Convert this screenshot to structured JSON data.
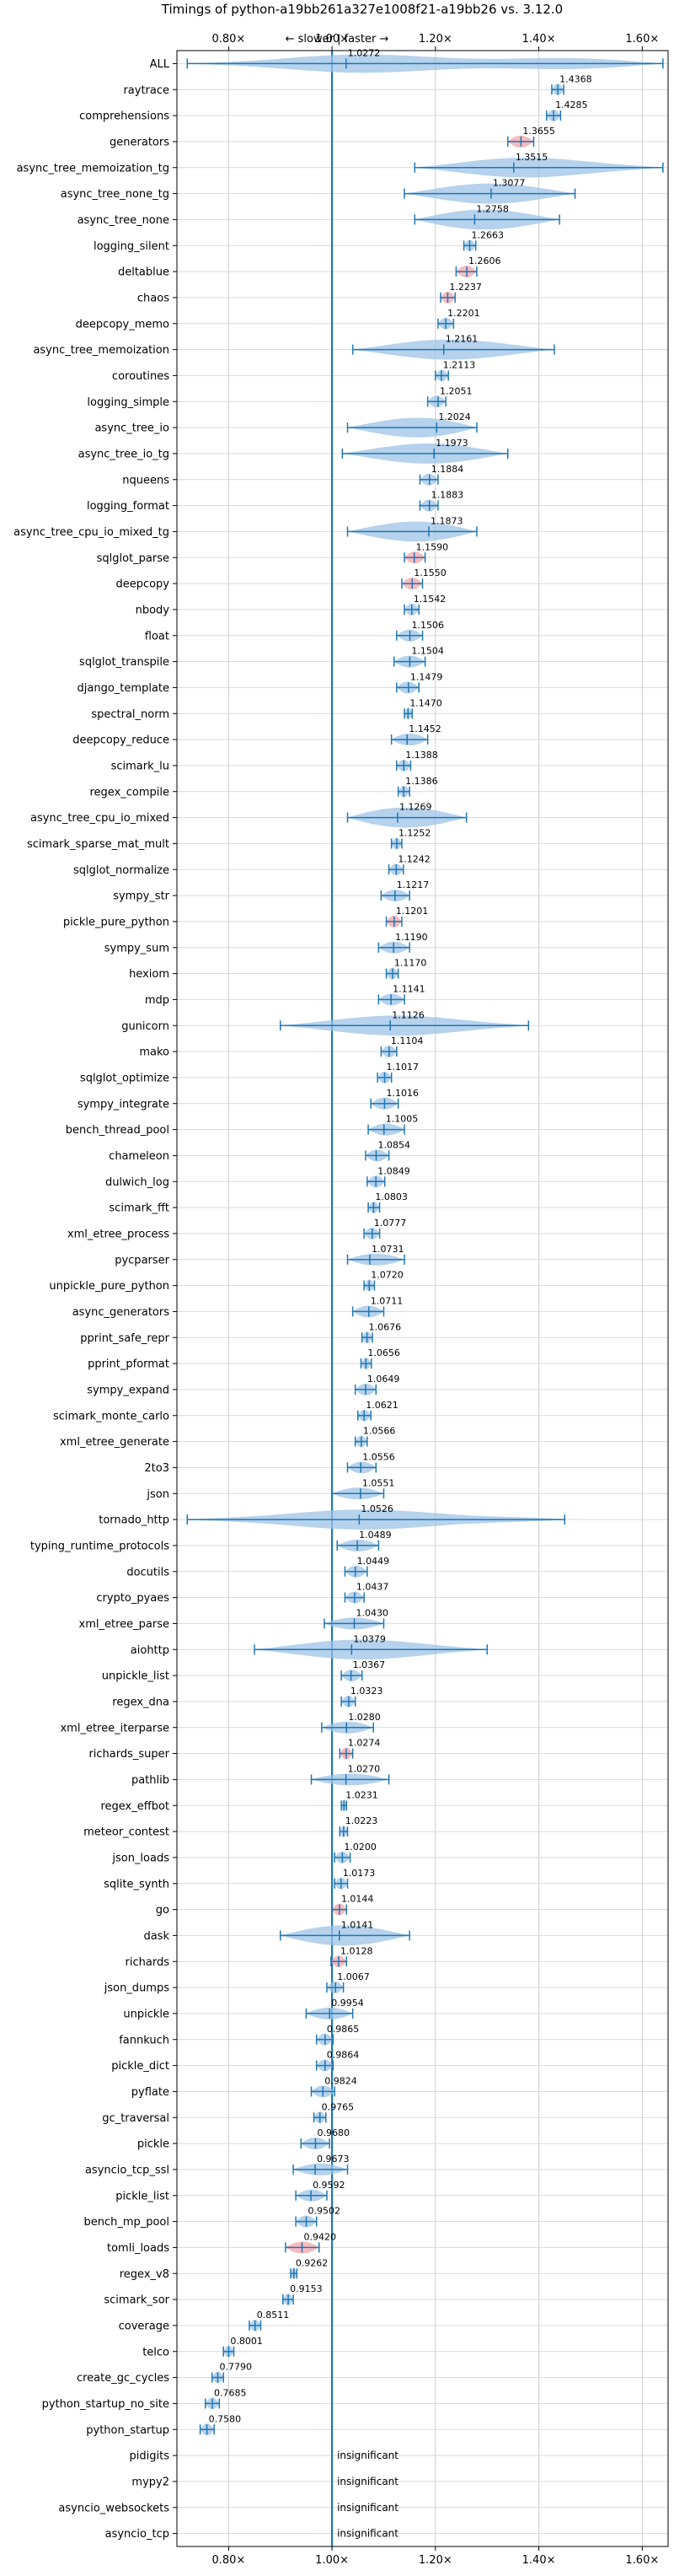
{
  "chart_data": {
    "type": "violin",
    "title": "Timings of python-a19bb261a327e1008f21-a19bb26 vs. 3.12.0",
    "direction_label": "← slower | faster →",
    "x_ticks": [
      "0.80×",
      "1.00×",
      "1.20×",
      "1.40×",
      "1.60×"
    ],
    "x_tick_values": [
      0.8,
      1.0,
      1.2,
      1.4,
      1.6
    ],
    "xlim": [
      0.7,
      1.65
    ],
    "reference_line": 1.0,
    "grid": true,
    "colors": {
      "violin": "#9ec3e6",
      "line": "#1f77b4",
      "highlight": "#f4a3a8"
    },
    "insignificant_label": "insignificant",
    "benchmarks": [
      {
        "name": "ALL",
        "label": "1.0272",
        "value": 1.0272,
        "lo": 0.72,
        "hi": 1.64,
        "highlight": false
      },
      {
        "name": "raytrace",
        "label": "1.4368",
        "value": 1.4368,
        "lo": 1.425,
        "hi": 1.448,
        "highlight": false
      },
      {
        "name": "comprehensions",
        "label": "1.4285",
        "value": 1.4285,
        "lo": 1.415,
        "hi": 1.442,
        "highlight": false
      },
      {
        "name": "generators",
        "label": "1.3655",
        "value": 1.3655,
        "lo": 1.34,
        "hi": 1.39,
        "highlight": true
      },
      {
        "name": "async_tree_memoization_tg",
        "label": "1.3515",
        "value": 1.3515,
        "lo": 1.16,
        "hi": 1.64,
        "highlight": false
      },
      {
        "name": "async_tree_none_tg",
        "label": "1.3077",
        "value": 1.3077,
        "lo": 1.14,
        "hi": 1.47,
        "highlight": false
      },
      {
        "name": "async_tree_none",
        "label": "1.2758",
        "value": 1.2758,
        "lo": 1.16,
        "hi": 1.44,
        "highlight": false
      },
      {
        "name": "logging_silent",
        "label": "1.2663",
        "value": 1.2663,
        "lo": 1.255,
        "hi": 1.278,
        "highlight": false
      },
      {
        "name": "deltablue",
        "label": "1.2606",
        "value": 1.2606,
        "lo": 1.24,
        "hi": 1.28,
        "highlight": true
      },
      {
        "name": "chaos",
        "label": "1.2237",
        "value": 1.2237,
        "lo": 1.21,
        "hi": 1.238,
        "highlight": true
      },
      {
        "name": "deepcopy_memo",
        "label": "1.2201",
        "value": 1.2201,
        "lo": 1.205,
        "hi": 1.235,
        "highlight": false
      },
      {
        "name": "async_tree_memoization",
        "label": "1.2161",
        "value": 1.2161,
        "lo": 1.04,
        "hi": 1.43,
        "highlight": false
      },
      {
        "name": "coroutines",
        "label": "1.2113",
        "value": 1.2113,
        "lo": 1.2,
        "hi": 1.225,
        "highlight": false
      },
      {
        "name": "logging_simple",
        "label": "1.2051",
        "value": 1.2051,
        "lo": 1.185,
        "hi": 1.22,
        "highlight": false
      },
      {
        "name": "async_tree_io",
        "label": "1.2024",
        "value": 1.2024,
        "lo": 1.03,
        "hi": 1.28,
        "highlight": false
      },
      {
        "name": "async_tree_io_tg",
        "label": "1.1973",
        "value": 1.1973,
        "lo": 1.02,
        "hi": 1.34,
        "highlight": false
      },
      {
        "name": "nqueens",
        "label": "1.1884",
        "value": 1.1884,
        "lo": 1.17,
        "hi": 1.205,
        "highlight": false
      },
      {
        "name": "logging_format",
        "label": "1.1883",
        "value": 1.1883,
        "lo": 1.17,
        "hi": 1.205,
        "highlight": false
      },
      {
        "name": "async_tree_cpu_io_mixed_tg",
        "label": "1.1873",
        "value": 1.1873,
        "lo": 1.03,
        "hi": 1.28,
        "highlight": false
      },
      {
        "name": "sqlglot_parse",
        "label": "1.1590",
        "value": 1.159,
        "lo": 1.14,
        "hi": 1.18,
        "highlight": true
      },
      {
        "name": "deepcopy",
        "label": "1.1550",
        "value": 1.155,
        "lo": 1.135,
        "hi": 1.175,
        "highlight": true
      },
      {
        "name": "nbody",
        "label": "1.1542",
        "value": 1.1542,
        "lo": 1.14,
        "hi": 1.168,
        "highlight": false
      },
      {
        "name": "float",
        "label": "1.1506",
        "value": 1.1506,
        "lo": 1.125,
        "hi": 1.175,
        "highlight": false
      },
      {
        "name": "sqlglot_transpile",
        "label": "1.1504",
        "value": 1.1504,
        "lo": 1.12,
        "hi": 1.18,
        "highlight": false
      },
      {
        "name": "django_template",
        "label": "1.1479",
        "value": 1.1479,
        "lo": 1.125,
        "hi": 1.168,
        "highlight": false
      },
      {
        "name": "spectral_norm",
        "label": "1.1470",
        "value": 1.147,
        "lo": 1.14,
        "hi": 1.155,
        "highlight": false
      },
      {
        "name": "deepcopy_reduce",
        "label": "1.1452",
        "value": 1.1452,
        "lo": 1.115,
        "hi": 1.185,
        "highlight": false
      },
      {
        "name": "scimark_lu",
        "label": "1.1388",
        "value": 1.1388,
        "lo": 1.125,
        "hi": 1.152,
        "highlight": false
      },
      {
        "name": "regex_compile",
        "label": "1.1386",
        "value": 1.1386,
        "lo": 1.128,
        "hi": 1.15,
        "highlight": false
      },
      {
        "name": "async_tree_cpu_io_mixed",
        "label": "1.1269",
        "value": 1.1269,
        "lo": 1.03,
        "hi": 1.26,
        "highlight": false
      },
      {
        "name": "scimark_sparse_mat_mult",
        "label": "1.1252",
        "value": 1.1252,
        "lo": 1.115,
        "hi": 1.135,
        "highlight": false
      },
      {
        "name": "sqlglot_normalize",
        "label": "1.1242",
        "value": 1.1242,
        "lo": 1.11,
        "hi": 1.138,
        "highlight": false
      },
      {
        "name": "sympy_str",
        "label": "1.1217",
        "value": 1.1217,
        "lo": 1.095,
        "hi": 1.15,
        "highlight": false
      },
      {
        "name": "pickle_pure_python",
        "label": "1.1201",
        "value": 1.1201,
        "lo": 1.105,
        "hi": 1.135,
        "highlight": true
      },
      {
        "name": "sympy_sum",
        "label": "1.1190",
        "value": 1.119,
        "lo": 1.09,
        "hi": 1.15,
        "highlight": false
      },
      {
        "name": "hexiom",
        "label": "1.1170",
        "value": 1.117,
        "lo": 1.105,
        "hi": 1.128,
        "highlight": false
      },
      {
        "name": "mdp",
        "label": "1.1141",
        "value": 1.1141,
        "lo": 1.09,
        "hi": 1.14,
        "highlight": false
      },
      {
        "name": "gunicorn",
        "label": "1.1126",
        "value": 1.1126,
        "lo": 0.9,
        "hi": 1.38,
        "highlight": false
      },
      {
        "name": "mako",
        "label": "1.1104",
        "value": 1.1104,
        "lo": 1.095,
        "hi": 1.125,
        "highlight": false
      },
      {
        "name": "sqlglot_optimize",
        "label": "1.1017",
        "value": 1.1017,
        "lo": 1.088,
        "hi": 1.115,
        "highlight": false
      },
      {
        "name": "sympy_integrate",
        "label": "1.1016",
        "value": 1.1016,
        "lo": 1.075,
        "hi": 1.128,
        "highlight": false
      },
      {
        "name": "bench_thread_pool",
        "label": "1.1005",
        "value": 1.1005,
        "lo": 1.07,
        "hi": 1.14,
        "highlight": false
      },
      {
        "name": "chameleon",
        "label": "1.0854",
        "value": 1.0854,
        "lo": 1.065,
        "hi": 1.11,
        "highlight": false
      },
      {
        "name": "dulwich_log",
        "label": "1.0849",
        "value": 1.0849,
        "lo": 1.068,
        "hi": 1.102,
        "highlight": false
      },
      {
        "name": "scimark_fft",
        "label": "1.0803",
        "value": 1.0803,
        "lo": 1.07,
        "hi": 1.092,
        "highlight": false
      },
      {
        "name": "xml_etree_process",
        "label": "1.0777",
        "value": 1.0777,
        "lo": 1.062,
        "hi": 1.092,
        "highlight": false
      },
      {
        "name": "pycparser",
        "label": "1.0731",
        "value": 1.0731,
        "lo": 1.03,
        "hi": 1.14,
        "highlight": false
      },
      {
        "name": "unpickle_pure_python",
        "label": "1.0720",
        "value": 1.072,
        "lo": 1.062,
        "hi": 1.082,
        "highlight": false
      },
      {
        "name": "async_generators",
        "label": "1.0711",
        "value": 1.0711,
        "lo": 1.04,
        "hi": 1.1,
        "highlight": false
      },
      {
        "name": "pprint_safe_repr",
        "label": "1.0676",
        "value": 1.0676,
        "lo": 1.058,
        "hi": 1.078,
        "highlight": false
      },
      {
        "name": "pprint_pformat",
        "label": "1.0656",
        "value": 1.0656,
        "lo": 1.056,
        "hi": 1.076,
        "highlight": false
      },
      {
        "name": "sympy_expand",
        "label": "1.0649",
        "value": 1.0649,
        "lo": 1.045,
        "hi": 1.085,
        "highlight": false
      },
      {
        "name": "scimark_monte_carlo",
        "label": "1.0621",
        "value": 1.0621,
        "lo": 1.05,
        "hi": 1.075,
        "highlight": false
      },
      {
        "name": "xml_etree_generate",
        "label": "1.0566",
        "value": 1.0566,
        "lo": 1.045,
        "hi": 1.068,
        "highlight": false
      },
      {
        "name": "2to3",
        "label": "1.0556",
        "value": 1.0556,
        "lo": 1.03,
        "hi": 1.085,
        "highlight": false
      },
      {
        "name": "json",
        "label": "1.0551",
        "value": 1.0551,
        "lo": 1.0,
        "hi": 1.1,
        "highlight": false
      },
      {
        "name": "tornado_http",
        "label": "1.0526",
        "value": 1.0526,
        "lo": 0.72,
        "hi": 1.45,
        "highlight": false
      },
      {
        "name": "typing_runtime_protocols",
        "label": "1.0489",
        "value": 1.0489,
        "lo": 1.01,
        "hi": 1.09,
        "highlight": false
      },
      {
        "name": "docutils",
        "label": "1.0449",
        "value": 1.0449,
        "lo": 1.025,
        "hi": 1.068,
        "highlight": false
      },
      {
        "name": "crypto_pyaes",
        "label": "1.0437",
        "value": 1.0437,
        "lo": 1.025,
        "hi": 1.062,
        "highlight": false
      },
      {
        "name": "xml_etree_parse",
        "label": "1.0430",
        "value": 1.043,
        "lo": 0.985,
        "hi": 1.1,
        "highlight": false
      },
      {
        "name": "aiohttp",
        "label": "1.0379",
        "value": 1.0379,
        "lo": 0.85,
        "hi": 1.3,
        "highlight": false
      },
      {
        "name": "unpickle_list",
        "label": "1.0367",
        "value": 1.0367,
        "lo": 1.018,
        "hi": 1.058,
        "highlight": false
      },
      {
        "name": "regex_dna",
        "label": "1.0323",
        "value": 1.0323,
        "lo": 1.018,
        "hi": 1.045,
        "highlight": false
      },
      {
        "name": "xml_etree_iterparse",
        "label": "1.0280",
        "value": 1.028,
        "lo": 0.98,
        "hi": 1.08,
        "highlight": false
      },
      {
        "name": "richards_super",
        "label": "1.0274",
        "value": 1.0274,
        "lo": 1.015,
        "hi": 1.04,
        "highlight": true
      },
      {
        "name": "pathlib",
        "label": "1.0270",
        "value": 1.027,
        "lo": 0.96,
        "hi": 1.11,
        "highlight": false
      },
      {
        "name": "regex_effbot",
        "label": "1.0231",
        "value": 1.0231,
        "lo": 1.018,
        "hi": 1.028,
        "highlight": false
      },
      {
        "name": "meteor_contest",
        "label": "1.0223",
        "value": 1.0223,
        "lo": 1.015,
        "hi": 1.03,
        "highlight": false
      },
      {
        "name": "json_loads",
        "label": "1.0200",
        "value": 1.02,
        "lo": 1.005,
        "hi": 1.035,
        "highlight": false
      },
      {
        "name": "sqlite_synth",
        "label": "1.0173",
        "value": 1.0173,
        "lo": 1.005,
        "hi": 1.03,
        "highlight": false
      },
      {
        "name": "go",
        "label": "1.0144",
        "value": 1.0144,
        "lo": 1.0,
        "hi": 1.028,
        "highlight": true
      },
      {
        "name": "dask",
        "label": "1.0141",
        "value": 1.0141,
        "lo": 0.9,
        "hi": 1.15,
        "highlight": false
      },
      {
        "name": "richards",
        "label": "1.0128",
        "value": 1.0128,
        "lo": 0.998,
        "hi": 1.028,
        "highlight": true
      },
      {
        "name": "json_dumps",
        "label": "1.0067",
        "value": 1.0067,
        "lo": 0.99,
        "hi": 1.022,
        "highlight": false
      },
      {
        "name": "unpickle",
        "label": "0.9954",
        "value": 0.9954,
        "lo": 0.95,
        "hi": 1.04,
        "highlight": false
      },
      {
        "name": "fannkuch",
        "label": "0.9865",
        "value": 0.9865,
        "lo": 0.97,
        "hi": 1.002,
        "highlight": false
      },
      {
        "name": "pickle_dict",
        "label": "0.9864",
        "value": 0.9864,
        "lo": 0.97,
        "hi": 1.002,
        "highlight": false
      },
      {
        "name": "pyflate",
        "label": "0.9824",
        "value": 0.9824,
        "lo": 0.96,
        "hi": 1.005,
        "highlight": false
      },
      {
        "name": "gc_traversal",
        "label": "0.9765",
        "value": 0.9765,
        "lo": 0.965,
        "hi": 0.988,
        "highlight": false
      },
      {
        "name": "pickle",
        "label": "0.9680",
        "value": 0.968,
        "lo": 0.94,
        "hi": 0.995,
        "highlight": false
      },
      {
        "name": "asyncio_tcp_ssl",
        "label": "0.9673",
        "value": 0.9673,
        "lo": 0.925,
        "hi": 1.03,
        "highlight": false
      },
      {
        "name": "pickle_list",
        "label": "0.9592",
        "value": 0.9592,
        "lo": 0.93,
        "hi": 0.99,
        "highlight": false
      },
      {
        "name": "bench_mp_pool",
        "label": "0.9502",
        "value": 0.9502,
        "lo": 0.93,
        "hi": 0.97,
        "highlight": false
      },
      {
        "name": "tomli_loads",
        "label": "0.9420",
        "value": 0.942,
        "lo": 0.91,
        "hi": 0.975,
        "highlight": true
      },
      {
        "name": "regex_v8",
        "label": "0.9262",
        "value": 0.9262,
        "lo": 0.92,
        "hi": 0.932,
        "highlight": false
      },
      {
        "name": "scimark_sor",
        "label": "0.9153",
        "value": 0.9153,
        "lo": 0.905,
        "hi": 0.925,
        "highlight": false
      },
      {
        "name": "coverage",
        "label": "0.8511",
        "value": 0.8511,
        "lo": 0.84,
        "hi": 0.862,
        "highlight": false
      },
      {
        "name": "telco",
        "label": "0.8001",
        "value": 0.8001,
        "lo": 0.79,
        "hi": 0.81,
        "highlight": false
      },
      {
        "name": "create_gc_cycles",
        "label": "0.7790",
        "value": 0.779,
        "lo": 0.768,
        "hi": 0.79,
        "highlight": false
      },
      {
        "name": "python_startup_no_site",
        "label": "0.7685",
        "value": 0.7685,
        "lo": 0.755,
        "hi": 0.782,
        "highlight": false
      },
      {
        "name": "python_startup",
        "label": "0.7580",
        "value": 0.758,
        "lo": 0.745,
        "hi": 0.772,
        "highlight": false
      },
      {
        "name": "pidigits",
        "label": "insignificant",
        "insignificant": true
      },
      {
        "name": "mypy2",
        "label": "insignificant",
        "insignificant": true
      },
      {
        "name": "asyncio_websockets",
        "label": "insignificant",
        "insignificant": true
      },
      {
        "name": "asyncio_tcp",
        "label": "insignificant",
        "insignificant": true
      }
    ]
  }
}
